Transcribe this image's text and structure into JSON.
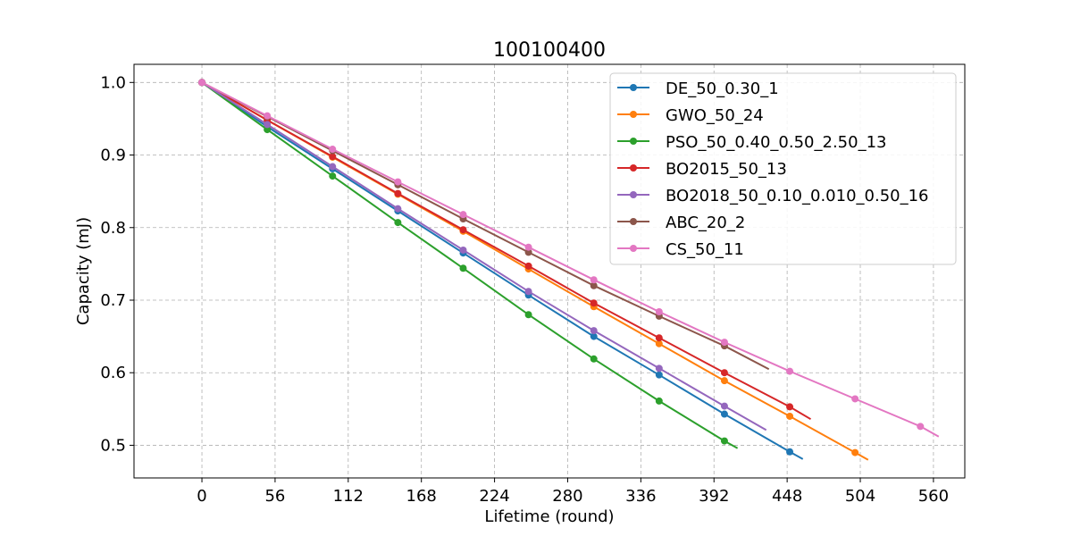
{
  "chart_data": {
    "type": "line",
    "title": "100100400",
    "xlabel": "Lifetime (round)",
    "ylabel": "Capacity (mJ)",
    "xlim": [
      -52,
      584
    ],
    "ylim": [
      0.455,
      1.025
    ],
    "xticks": [
      0,
      56,
      112,
      168,
      224,
      280,
      336,
      392,
      448,
      504,
      560
    ],
    "yticks": [
      0.5,
      0.6,
      0.7,
      0.8,
      0.9,
      1.0
    ],
    "ytick_labels": [
      "0.5",
      "0.6",
      "0.7",
      "0.8",
      "0.9",
      "1.0"
    ],
    "grid": true,
    "legend_position": "top-right",
    "series": [
      {
        "name": "DE_50_0.30_1",
        "color": "#1f77b4",
        "x": [
          0,
          50,
          100,
          150,
          200,
          250,
          300,
          350,
          400,
          450,
          460
        ],
        "y": [
          1.0,
          0.939,
          0.881,
          0.823,
          0.765,
          0.707,
          0.65,
          0.597,
          0.543,
          0.491,
          0.481
        ],
        "markers_x": [
          0,
          50,
          100,
          150,
          200,
          250,
          300,
          350,
          400,
          450
        ]
      },
      {
        "name": "GWO_50_24",
        "color": "#ff7f0e",
        "x": [
          0,
          50,
          100,
          150,
          200,
          250,
          300,
          350,
          400,
          450,
          500,
          510
        ],
        "y": [
          1.0,
          0.948,
          0.897,
          0.846,
          0.795,
          0.743,
          0.691,
          0.64,
          0.589,
          0.54,
          0.49,
          0.48
        ],
        "markers_x": [
          0,
          50,
          100,
          150,
          200,
          250,
          300,
          350,
          400,
          450,
          500
        ]
      },
      {
        "name": "PSO_50_0.40_0.50_2.50_13",
        "color": "#2ca02c",
        "x": [
          0,
          50,
          100,
          150,
          200,
          250,
          300,
          350,
          400,
          410
        ],
        "y": [
          1.0,
          0.935,
          0.871,
          0.807,
          0.744,
          0.68,
          0.619,
          0.561,
          0.506,
          0.496
        ],
        "markers_x": [
          0,
          50,
          100,
          150,
          200,
          250,
          300,
          350,
          400
        ]
      },
      {
        "name": "BO2015_50_13",
        "color": "#d62728",
        "x": [
          0,
          50,
          100,
          150,
          200,
          250,
          300,
          350,
          400,
          450,
          466
        ],
        "y": [
          1.0,
          0.948,
          0.898,
          0.847,
          0.797,
          0.747,
          0.696,
          0.648,
          0.6,
          0.553,
          0.536
        ],
        "markers_x": [
          0,
          50,
          100,
          150,
          200,
          250,
          300,
          350,
          400,
          450
        ]
      },
      {
        "name": "BO2018_50_0.10_0.010_0.50_16",
        "color": "#9467bd",
        "x": [
          0,
          50,
          100,
          150,
          200,
          250,
          300,
          350,
          400,
          432
        ],
        "y": [
          1.0,
          0.942,
          0.884,
          0.826,
          0.769,
          0.712,
          0.658,
          0.606,
          0.554,
          0.521
        ],
        "markers_x": [
          0,
          50,
          100,
          150,
          200,
          250,
          300,
          350,
          400
        ]
      },
      {
        "name": "ABC_20_2",
        "color": "#8c564b",
        "x": [
          0,
          50,
          100,
          150,
          200,
          250,
          300,
          350,
          400,
          434
        ],
        "y": [
          1.0,
          0.953,
          0.906,
          0.859,
          0.812,
          0.766,
          0.72,
          0.678,
          0.637,
          0.605
        ],
        "markers_x": [
          0,
          50,
          100,
          150,
          200,
          250,
          300,
          350,
          400
        ]
      },
      {
        "name": "CS_50_11",
        "color": "#e377c2",
        "x": [
          0,
          50,
          100,
          150,
          200,
          250,
          300,
          350,
          400,
          450,
          500,
          550,
          564
        ],
        "y": [
          1.0,
          0.954,
          0.908,
          0.863,
          0.818,
          0.773,
          0.728,
          0.684,
          0.642,
          0.602,
          0.564,
          0.526,
          0.512
        ],
        "markers_x": [
          0,
          50,
          100,
          150,
          200,
          250,
          300,
          350,
          400,
          450,
          500,
          550
        ]
      }
    ]
  }
}
